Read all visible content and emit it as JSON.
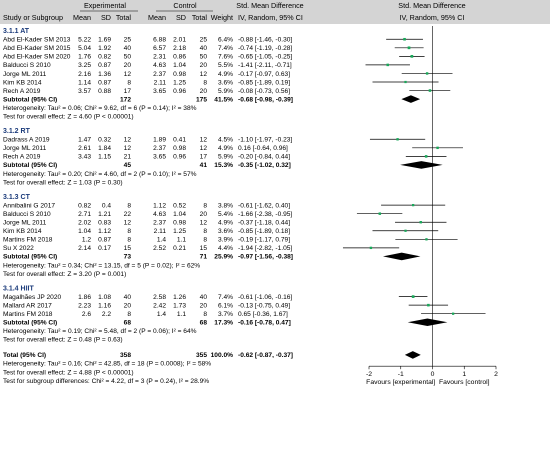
{
  "header": {
    "experimental": "Experimental",
    "control": "Control",
    "smd": "Std. Mean Difference",
    "smd_right": "Std. Mean Difference",
    "study": "Study or Subgroup",
    "mean": "Mean",
    "sd": "SD",
    "total": "Total",
    "weight": "Weight",
    "method": "IV, Random, 95% CI",
    "method_right": "IV, Random, 95% CI"
  },
  "chart_data": {
    "type": "forest",
    "xlim": [
      -2,
      2
    ],
    "xticks": [
      "-2",
      "-1",
      "0",
      "1",
      "2"
    ],
    "x_left_label": "Favours [experimental]",
    "x_right_label": "Favours [control]",
    "subgroups": [
      {
        "title": "3.1.1 AT",
        "studies": [
          {
            "name": "Abd El-Kader SM 2013",
            "em": "5.22",
            "esd": "1.69",
            "en": "25",
            "cm": "6.88",
            "csd": "2.01",
            "cn": "25",
            "w": "6.4%",
            "ci_text": "-0.88 [-1.46, -0.30]",
            "est": -0.88,
            "lo": -1.46,
            "hi": -0.3,
            "wv": 6.4
          },
          {
            "name": "Abd El-Kader SM 2015",
            "em": "5.04",
            "esd": "1.92",
            "en": "40",
            "cm": "6.57",
            "csd": "2.18",
            "cn": "40",
            "w": "7.4%",
            "ci_text": "-0.74 [-1.19, -0.28]",
            "est": -0.74,
            "lo": -1.19,
            "hi": -0.28,
            "wv": 7.4
          },
          {
            "name": "Abd El-Kader SM 2020",
            "em": "1.76",
            "esd": "0.82",
            "en": "50",
            "cm": "2.31",
            "csd": "0.86",
            "cn": "50",
            "w": "7.6%",
            "ci_text": "-0.65 [-1.05, -0.25]",
            "est": -0.65,
            "lo": -1.05,
            "hi": -0.25,
            "wv": 7.6
          },
          {
            "name": "Balducci S 2010",
            "em": "3.25",
            "esd": "0.87",
            "en": "20",
            "cm": "4.63",
            "csd": "1.04",
            "cn": "20",
            "w": "5.5%",
            "ci_text": "-1.41 [-2.11, -0.71]",
            "est": -1.41,
            "lo": -2.11,
            "hi": -0.71,
            "wv": 5.5
          },
          {
            "name": "Jorge ML 2011",
            "em": "2.16",
            "esd": "1.36",
            "en": "12",
            "cm": "2.37",
            "csd": "0.98",
            "cn": "12",
            "w": "4.9%",
            "ci_text": "-0.17 [-0.97, 0.63]",
            "est": -0.17,
            "lo": -0.97,
            "hi": 0.63,
            "wv": 4.9
          },
          {
            "name": "Kim KB 2014",
            "em": "1.14",
            "esd": "0.87",
            "en": "8",
            "cm": "2.11",
            "csd": "1.25",
            "cn": "8",
            "w": "3.6%",
            "ci_text": "-0.85 [-1.89, 0.19]",
            "est": -0.85,
            "lo": -1.89,
            "hi": 0.19,
            "wv": 3.6
          },
          {
            "name": "Rech A 2019",
            "em": "3.57",
            "esd": "0.88",
            "en": "17",
            "cm": "3.65",
            "csd": "0.96",
            "cn": "20",
            "w": "5.9%",
            "ci_text": "-0.08 [-0.73, 0.56]",
            "est": -0.08,
            "lo": -0.73,
            "hi": 0.56,
            "wv": 5.9
          }
        ],
        "subtotal": {
          "label": "Subtotal (95% CI)",
          "en": "172",
          "cn": "175",
          "w": "41.5%",
          "ci_text": "-0.68 [-0.98, -0.39]",
          "est": -0.68,
          "lo": -0.98,
          "hi": -0.39
        },
        "heterogeneity": "Heterogeneity: Tau² = 0.06; Chi² = 9.62, df = 6 (P = 0.14); I² = 38%",
        "overall": "Test for overall effect: Z = 4.60 (P < 0.00001)"
      },
      {
        "title": "3.1.2 RT",
        "studies": [
          {
            "name": "Dadrass A 2019",
            "em": "1.47",
            "esd": "0.32",
            "en": "12",
            "cm": "1.89",
            "csd": "0.41",
            "cn": "12",
            "w": "4.5%",
            "ci_text": "-1.10 [-1.97, -0.23]",
            "est": -1.1,
            "lo": -1.97,
            "hi": -0.23,
            "wv": 4.5
          },
          {
            "name": "Jorge ML 2011",
            "em": "2.61",
            "esd": "1.84",
            "en": "12",
            "cm": "2.37",
            "csd": "0.98",
            "cn": "12",
            "w": "4.9%",
            "ci_text": "0.16 [-0.64, 0.96]",
            "est": 0.16,
            "lo": -0.64,
            "hi": 0.96,
            "wv": 4.9
          },
          {
            "name": "Rech A 2019",
            "em": "3.43",
            "esd": "1.15",
            "en": "21",
            "cm": "3.65",
            "csd": "0.96",
            "cn": "17",
            "w": "5.9%",
            "ci_text": "-0.20 [-0.84, 0.44]",
            "est": -0.2,
            "lo": -0.84,
            "hi": 0.44,
            "wv": 5.9
          }
        ],
        "subtotal": {
          "label": "Subtotal (95% CI)",
          "en": "45",
          "cn": "41",
          "w": "15.3%",
          "ci_text": "-0.35 [-1.02, 0.32]",
          "est": -0.35,
          "lo": -1.02,
          "hi": 0.32
        },
        "heterogeneity": "Heterogeneity: Tau² = 0.20; Chi² = 4.60, df = 2 (P = 0.10); I² = 57%",
        "overall": "Test for overall effect: Z = 1.03 (P = 0.30)"
      },
      {
        "title": "3.1.3 CT",
        "studies": [
          {
            "name": "Annibalini G 2017",
            "em": "0.82",
            "esd": "0.4",
            "en": "8",
            "cm": "1.12",
            "csd": "0.52",
            "cn": "8",
            "w": "3.8%",
            "ci_text": "-0.61 [-1.62, 0.40]",
            "est": -0.61,
            "lo": -1.62,
            "hi": 0.4,
            "wv": 3.8
          },
          {
            "name": "Balducci S 2010",
            "em": "2.71",
            "esd": "1.21",
            "en": "22",
            "cm": "4.63",
            "csd": "1.04",
            "cn": "20",
            "w": "5.4%",
            "ci_text": "-1.66 [-2.38, -0.95]",
            "est": -1.66,
            "lo": -2.38,
            "hi": -0.95,
            "wv": 5.4
          },
          {
            "name": "Jorge ML 2011",
            "em": "2.02",
            "esd": "0.83",
            "en": "12",
            "cm": "2.37",
            "csd": "0.98",
            "cn": "12",
            "w": "4.9%",
            "ci_text": "-0.37 [-1.18, 0.44]",
            "est": -0.37,
            "lo": -1.18,
            "hi": 0.44,
            "wv": 4.9
          },
          {
            "name": "Kim KB 2014",
            "em": "1.04",
            "esd": "1.12",
            "en": "8",
            "cm": "2.11",
            "csd": "1.25",
            "cn": "8",
            "w": "3.6%",
            "ci_text": "-0.85 [-1.89, 0.18]",
            "est": -0.85,
            "lo": -1.89,
            "hi": 0.18,
            "wv": 3.6
          },
          {
            "name": "Martins FM 2018",
            "em": "1.2",
            "esd": "0.87",
            "en": "8",
            "cm": "1.4",
            "csd": "1.1",
            "cn": "8",
            "w": "3.9%",
            "ci_text": "-0.19 [-1.17, 0.79]",
            "est": -0.19,
            "lo": -1.17,
            "hi": 0.79,
            "wv": 3.9
          },
          {
            "name": "Su X 2022",
            "em": "2.14",
            "esd": "0.17",
            "en": "15",
            "cm": "2.52",
            "csd": "0.21",
            "cn": "15",
            "w": "4.4%",
            "ci_text": "-1.94 [-2.82, -1.05]",
            "est": -1.94,
            "lo": -2.82,
            "hi": -1.05,
            "wv": 4.4
          }
        ],
        "subtotal": {
          "label": "Subtotal (95% CI)",
          "en": "73",
          "cn": "71",
          "w": "25.9%",
          "ci_text": "-0.97 [-1.56, -0.38]",
          "est": -0.97,
          "lo": -1.56,
          "hi": -0.38
        },
        "heterogeneity": "Heterogeneity: Tau² = 0.34; Chi² = 13.15, df = 5 (P = 0.02); I² = 62%",
        "overall": "Test for overall effect: Z = 3.20 (P = 0.001)"
      },
      {
        "title": "3.1.4 HIIT",
        "studies": [
          {
            "name": "Magalhães JP 2020",
            "em": "1.86",
            "esd": "1.08",
            "en": "40",
            "cm": "2.58",
            "csd": "1.26",
            "cn": "40",
            "w": "7.4%",
            "ci_text": "-0.61 [-1.06, -0.16]",
            "est": -0.61,
            "lo": -1.06,
            "hi": -0.16,
            "wv": 7.4
          },
          {
            "name": "Mallard AR 2017",
            "em": "2.23",
            "esd": "1.16",
            "en": "20",
            "cm": "2.42",
            "csd": "1.73",
            "cn": "20",
            "w": "6.1%",
            "ci_text": "-0.13 [-0.75, 0.49]",
            "est": -0.13,
            "lo": -0.75,
            "hi": 0.49,
            "wv": 6.1
          },
          {
            "name": "Martins FM 2018",
            "em": "2.6",
            "esd": "2.2",
            "en": "8",
            "cm": "1.4",
            "csd": "1.1",
            "cn": "8",
            "w": "3.7%",
            "ci_text": "0.65 [-0.36, 1.67]",
            "est": 0.65,
            "lo": -0.36,
            "hi": 1.67,
            "wv": 3.7
          }
        ],
        "subtotal": {
          "label": "Subtotal (95% CI)",
          "en": "68",
          "cn": "68",
          "w": "17.3%",
          "ci_text": "-0.16 [-0.78, 0.47]",
          "est": -0.16,
          "lo": -0.78,
          "hi": 0.47
        },
        "heterogeneity": "Heterogeneity: Tau² = 0.19; Chi² = 5.48, df = 2 (P = 0.06); I² = 64%",
        "overall": "Test for overall effect: Z = 0.48 (P = 0.63)"
      }
    ],
    "total": {
      "label": "Total (95% CI)",
      "en": "358",
      "cn": "355",
      "w": "100.0%",
      "ci_text": "-0.62 [-0.87, -0.37]",
      "est": -0.62,
      "lo": -0.87,
      "hi": -0.37
    },
    "footer": [
      "Heterogeneity: Tau² = 0.16; Chi² = 42.85, df = 18 (P = 0.0008); I² = 58%",
      "Test for overall effect: Z = 4.88 (P < 0.00001)",
      "Test for subgroup differences: Chi² = 4.22, df = 3 (P = 0.24), I² = 28.9%"
    ]
  },
  "colors": {
    "header_bg": "#d4d4d4",
    "subtitle": "#1a3a7a",
    "square": "#19a85a",
    "line": "#000000",
    "text": "#000000"
  }
}
